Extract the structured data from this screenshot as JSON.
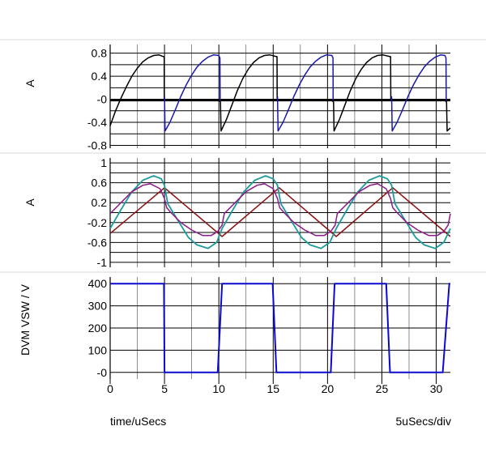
{
  "chart_data": [
    {
      "type": "line",
      "ylabel": "A",
      "ylim": [
        -0.85,
        0.95
      ],
      "yticks": [
        0.8,
        0.4,
        0,
        -0.4,
        -0.8
      ],
      "ytick_labels": [
        "0.8",
        "0.4",
        "-0",
        "-0.4",
        "-0.8"
      ],
      "ygrid": [
        0.8,
        0.6,
        0.4,
        0.2,
        0,
        -0.2,
        -0.4,
        -0.6,
        -0.8
      ],
      "series": [
        {
          "color": "#000000",
          "width": 1.5,
          "points": [
            [
              0,
              -0.46
            ],
            [
              0.5,
              -0.2
            ],
            [
              1,
              0.02
            ],
            [
              1.5,
              0.22
            ],
            [
              2,
              0.4
            ],
            [
              2.5,
              0.54
            ],
            [
              3,
              0.65
            ],
            [
              3.5,
              0.72
            ],
            [
              4,
              0.76
            ],
            [
              4.5,
              0.77
            ],
            [
              4.9,
              0.74
            ],
            [
              4.97,
              0.74
            ],
            [
              4.98,
              -0.02
            ],
            [
              5.2,
              -0.02
            ]
          ]
        },
        {
          "color": "#000000",
          "width": 1.5,
          "points": [
            [
              10.05,
              -0.02
            ],
            [
              10.15,
              -0.05
            ],
            [
              10.2,
              -0.55
            ],
            [
              10.7,
              -0.35
            ],
            [
              11.2,
              -0.1
            ],
            [
              11.7,
              0.15
            ],
            [
              12.2,
              0.36
            ],
            [
              12.7,
              0.52
            ],
            [
              13.2,
              0.64
            ],
            [
              13.7,
              0.72
            ],
            [
              14.2,
              0.76
            ],
            [
              14.7,
              0.77
            ],
            [
              15.3,
              0.74
            ],
            [
              15.35,
              0.74
            ],
            [
              15.37,
              -0.02
            ],
            [
              15.55,
              -0.02
            ]
          ]
        },
        {
          "color": "#000000",
          "width": 1.5,
          "points": [
            [
              20.4,
              -0.02
            ],
            [
              20.55,
              -0.05
            ],
            [
              20.6,
              -0.55
            ],
            [
              21.1,
              -0.35
            ],
            [
              21.6,
              -0.1
            ],
            [
              22.1,
              0.15
            ],
            [
              22.6,
              0.36
            ],
            [
              23.1,
              0.52
            ],
            [
              23.6,
              0.64
            ],
            [
              24.1,
              0.72
            ],
            [
              24.6,
              0.76
            ],
            [
              25.1,
              0.77
            ],
            [
              25.75,
              0.74
            ],
            [
              25.8,
              0.74
            ],
            [
              25.82,
              -0.02
            ],
            [
              26.0,
              -0.02
            ]
          ]
        },
        {
          "color": "#000000",
          "width": 1.5,
          "points": [
            [
              30.8,
              -0.02
            ],
            [
              30.95,
              -0.05
            ],
            [
              31.0,
              -0.55
            ],
            [
              31.3,
              -0.5
            ]
          ]
        },
        {
          "color": "#000000",
          "width": 2.2,
          "points": [
            [
              0,
              -0.02
            ],
            [
              31.3,
              -0.02
            ]
          ]
        },
        {
          "color": "#1A1AAA",
          "width": 1.5,
          "points": [
            [
              5.0,
              0.05
            ],
            [
              5.05,
              -0.55
            ],
            [
              5.5,
              -0.4
            ],
            [
              6,
              -0.18
            ],
            [
              6.5,
              0.05
            ],
            [
              7,
              0.25
            ],
            [
              7.5,
              0.42
            ],
            [
              8,
              0.56
            ],
            [
              8.5,
              0.66
            ],
            [
              9,
              0.73
            ],
            [
              9.5,
              0.77
            ],
            [
              10.0,
              0.76
            ],
            [
              10.1,
              0.72
            ],
            [
              10.12,
              -0.02
            ]
          ]
        },
        {
          "color": "#1A1AAA",
          "width": 1.5,
          "points": [
            [
              15.4,
              0.05
            ],
            [
              15.45,
              -0.55
            ],
            [
              15.9,
              -0.4
            ],
            [
              16.4,
              -0.18
            ],
            [
              16.9,
              0.05
            ],
            [
              17.4,
              0.25
            ],
            [
              17.9,
              0.42
            ],
            [
              18.4,
              0.56
            ],
            [
              18.9,
              0.66
            ],
            [
              19.4,
              0.73
            ],
            [
              19.9,
              0.77
            ],
            [
              20.4,
              0.76
            ],
            [
              20.5,
              0.72
            ],
            [
              20.52,
              -0.02
            ]
          ]
        },
        {
          "color": "#1A1AAA",
          "width": 1.5,
          "points": [
            [
              25.9,
              0.05
            ],
            [
              25.95,
              -0.55
            ],
            [
              26.4,
              -0.4
            ],
            [
              26.9,
              -0.18
            ],
            [
              27.4,
              0.05
            ],
            [
              27.9,
              0.25
            ],
            [
              28.4,
              0.42
            ],
            [
              28.9,
              0.56
            ],
            [
              29.4,
              0.66
            ],
            [
              29.9,
              0.73
            ],
            [
              30.4,
              0.77
            ],
            [
              30.8,
              0.76
            ],
            [
              30.9,
              0.72
            ],
            [
              30.92,
              -0.02
            ]
          ]
        }
      ]
    },
    {
      "type": "line",
      "ylabel": "A",
      "ylim": [
        -1.1,
        1.1
      ],
      "yticks": [
        1,
        0.6,
        0.2,
        -0.2,
        -0.6,
        -1
      ],
      "ytick_labels": [
        "1",
        "0.6",
        "0.2",
        "-0.2",
        "-0.6",
        "-1"
      ],
      "ygrid": [
        1,
        0.8,
        0.6,
        0.4,
        0.2,
        0,
        -0.2,
        -0.4,
        -0.6,
        -0.8,
        -1
      ],
      "series": [
        {
          "color": "#8B1010",
          "width": 1.5,
          "points": [
            [
              0,
              -0.42
            ],
            [
              5.0,
              0.5
            ],
            [
              10.3,
              -0.48
            ],
            [
              15.55,
              0.5
            ],
            [
              20.8,
              -0.48
            ],
            [
              26.0,
              0.5
            ],
            [
              31.3,
              -0.48
            ]
          ]
        },
        {
          "color": "#1A9A9A",
          "width": 1.8,
          "points": [
            [
              0,
              -0.32
            ],
            [
              1,
              0.06
            ],
            [
              2,
              0.42
            ],
            [
              3,
              0.65
            ],
            [
              4,
              0.74
            ],
            [
              4.7,
              0.68
            ],
            [
              5.0,
              0.55
            ],
            [
              5.3,
              0.18
            ],
            [
              5.8,
              0.0
            ],
            [
              6.5,
              -0.25
            ],
            [
              7.2,
              -0.5
            ],
            [
              8,
              -0.65
            ],
            [
              9,
              -0.72
            ],
            [
              9.8,
              -0.6
            ],
            [
              10.3,
              -0.32
            ],
            [
              11.3,
              0.06
            ],
            [
              12.3,
              0.42
            ],
            [
              13.3,
              0.65
            ],
            [
              14.3,
              0.74
            ],
            [
              15.0,
              0.68
            ],
            [
              15.4,
              0.55
            ],
            [
              15.7,
              0.18
            ],
            [
              16.2,
              0.0
            ],
            [
              16.9,
              -0.25
            ],
            [
              17.6,
              -0.5
            ],
            [
              18.4,
              -0.65
            ],
            [
              19.4,
              -0.72
            ],
            [
              20.2,
              -0.6
            ],
            [
              20.8,
              -0.32
            ],
            [
              21.8,
              0.06
            ],
            [
              22.8,
              0.42
            ],
            [
              23.8,
              0.65
            ],
            [
              24.8,
              0.74
            ],
            [
              25.5,
              0.68
            ],
            [
              25.9,
              0.55
            ],
            [
              26.2,
              0.18
            ],
            [
              26.7,
              0.0
            ],
            [
              27.4,
              -0.25
            ],
            [
              28.1,
              -0.5
            ],
            [
              28.9,
              -0.65
            ],
            [
              29.9,
              -0.72
            ],
            [
              30.7,
              -0.6
            ],
            [
              31.3,
              -0.32
            ]
          ]
        },
        {
          "color": "#8B1A8B",
          "width": 1.5,
          "points": [
            [
              0,
              -0.02
            ],
            [
              1,
              0.2
            ],
            [
              2,
              0.42
            ],
            [
              3,
              0.55
            ],
            [
              3.7,
              0.58
            ],
            [
              4.6,
              0.48
            ],
            [
              5.0,
              0.28
            ],
            [
              5.2,
              0.1
            ],
            [
              5.6,
              0.0
            ],
            [
              6.5,
              -0.2
            ],
            [
              7.5,
              -0.35
            ],
            [
              8.5,
              -0.46
            ],
            [
              9.3,
              -0.46
            ],
            [
              9.9,
              -0.38
            ],
            [
              10.3,
              -0.25
            ],
            [
              10.5,
              -0.02
            ],
            [
              11.5,
              0.2
            ],
            [
              12.5,
              0.42
            ],
            [
              13.5,
              0.55
            ],
            [
              14.2,
              0.58
            ],
            [
              15.0,
              0.48
            ],
            [
              15.4,
              0.28
            ],
            [
              15.6,
              0.1
            ],
            [
              16.0,
              0.0
            ],
            [
              16.9,
              -0.2
            ],
            [
              17.9,
              -0.35
            ],
            [
              18.9,
              -0.46
            ],
            [
              19.7,
              -0.46
            ],
            [
              20.3,
              -0.38
            ],
            [
              20.7,
              -0.25
            ],
            [
              20.9,
              -0.02
            ],
            [
              21.9,
              0.2
            ],
            [
              22.9,
              0.42
            ],
            [
              23.9,
              0.55
            ],
            [
              24.6,
              0.58
            ],
            [
              25.4,
              0.48
            ],
            [
              25.8,
              0.28
            ],
            [
              26.0,
              0.1
            ],
            [
              26.4,
              0.0
            ],
            [
              27.3,
              -0.2
            ],
            [
              28.3,
              -0.35
            ],
            [
              29.3,
              -0.46
            ],
            [
              30.1,
              -0.46
            ],
            [
              30.7,
              -0.38
            ],
            [
              31.1,
              -0.25
            ],
            [
              31.3,
              -0.02
            ]
          ]
        }
      ]
    },
    {
      "type": "line",
      "ylabel": "DVM VSW / V",
      "xlabel": "time/uSecs",
      "x_unit_note": "5uSecs/div",
      "xlim": [
        0,
        31.3
      ],
      "xticks": [
        0,
        5,
        10,
        15,
        20,
        25,
        30
      ],
      "ylim": [
        -30,
        430
      ],
      "yticks": [
        400,
        300,
        200,
        100,
        0
      ],
      "ytick_labels": [
        "400",
        "300",
        "200",
        "100",
        "-0"
      ],
      "ygrid": [
        400,
        300,
        200,
        100,
        0
      ],
      "series": [
        {
          "color": "#0A0AD0",
          "width": 2,
          "points": [
            [
              0,
              400
            ],
            [
              4.95,
              400
            ],
            [
              5.0,
              0
            ],
            [
              9.9,
              0
            ],
            [
              10.3,
              400
            ],
            [
              14.95,
              400
            ],
            [
              15.3,
              0
            ],
            [
              20.3,
              0
            ],
            [
              20.65,
              400
            ],
            [
              25.4,
              400
            ],
            [
              25.75,
              0
            ],
            [
              30.6,
              0
            ],
            [
              31.2,
              400
            ],
            [
              31.3,
              400
            ]
          ]
        }
      ]
    }
  ]
}
